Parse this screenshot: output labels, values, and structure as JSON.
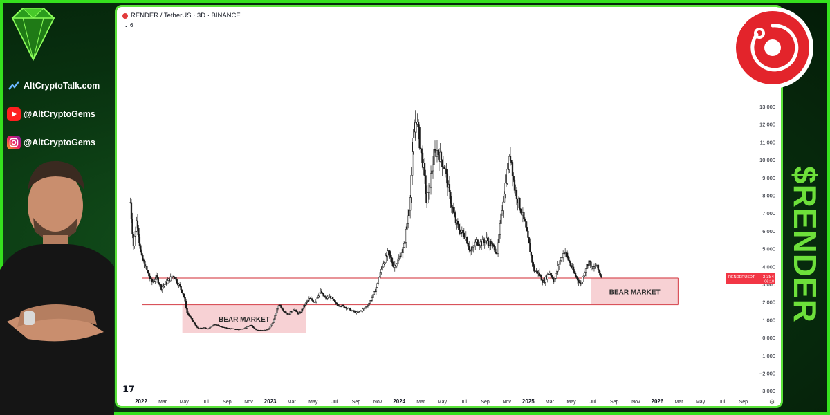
{
  "left_panel": {
    "website": "AltCryptoTalk.com",
    "youtube": "@AltCryptoGems",
    "instagram": "@AltCryptoGems"
  },
  "chart_header": {
    "title": "RENDER / TetherUS · 3D · BINANCE",
    "indicator_count": "6"
  },
  "brand": {
    "ticker_label": "$RENDER",
    "accent_color": "#35e11e",
    "render_red": "#e3242b"
  },
  "price_label": {
    "symbol": "RENDERUSDT",
    "value": "3.384",
    "countdown": "06:10"
  },
  "chart_data": {
    "type": "candlestick",
    "title": "RENDER / TetherUS · 3D · BINANCE",
    "y_range": [
      -3.0,
      13.5
    ],
    "y_ticks": [
      "13.000",
      "12.000",
      "11.000",
      "10.000",
      "9.000",
      "8.000",
      "7.000",
      "6.000",
      "5.000",
      "4.000",
      "3.000",
      "2.000",
      "1.000",
      "0.000",
      "−1.000",
      "−2.000",
      "−3.000"
    ],
    "y_tick_values": [
      13,
      12,
      11,
      10,
      9,
      8,
      7,
      6,
      5,
      4,
      3,
      2,
      1,
      0,
      -1,
      -2,
      -3
    ],
    "x_ticks": [
      "2022",
      "Mar",
      "May",
      "Jul",
      "Sep",
      "Nov",
      "2023",
      "Mar",
      "May",
      "Jul",
      "Sep",
      "Nov",
      "2024",
      "Mar",
      "May",
      "Jul",
      "Sep",
      "Nov",
      "2025",
      "Mar",
      "May",
      "Jul",
      "Sep",
      "Nov",
      "2026",
      "Mar",
      "May",
      "Jul",
      "Sep"
    ],
    "x_tick_bold": [
      "2022",
      "2023",
      "2024",
      "2025",
      "2026"
    ],
    "price_path": [
      [
        "2021-12-01",
        7.6
      ],
      [
        "2021-12-10",
        5.2
      ],
      [
        "2021-12-20",
        6.7
      ],
      [
        "2022-01-01",
        4.6
      ],
      [
        "2022-01-15",
        3.9
      ],
      [
        "2022-02-01",
        3.1
      ],
      [
        "2022-02-15",
        3.4
      ],
      [
        "2022-03-01",
        2.8
      ],
      [
        "2022-03-20",
        3.2
      ],
      [
        "2022-04-05",
        3.5
      ],
      [
        "2022-04-20",
        3.0
      ],
      [
        "2022-05-05",
        2.4
      ],
      [
        "2022-05-15",
        1.4
      ],
      [
        "2022-06-01",
        0.9
      ],
      [
        "2022-06-15",
        0.5
      ],
      [
        "2022-07-01",
        0.55
      ],
      [
        "2022-07-15",
        0.5
      ],
      [
        "2022-08-01",
        0.75
      ],
      [
        "2022-08-15",
        0.65
      ],
      [
        "2022-09-01",
        0.55
      ],
      [
        "2022-09-20",
        0.5
      ],
      [
        "2022-10-10",
        0.45
      ],
      [
        "2022-11-01",
        0.55
      ],
      [
        "2022-11-15",
        0.7
      ],
      [
        "2022-12-01",
        0.45
      ],
      [
        "2022-12-20",
        0.4
      ],
      [
        "2023-01-05",
        0.45
      ],
      [
        "2023-01-20",
        0.9
      ],
      [
        "2023-02-05",
        1.9
      ],
      [
        "2023-02-20",
        1.5
      ],
      [
        "2023-03-05",
        1.3
      ],
      [
        "2023-03-20",
        1.6
      ],
      [
        "2023-04-05",
        1.3
      ],
      [
        "2023-04-20",
        1.8
      ],
      [
        "2023-05-05",
        2.2
      ],
      [
        "2023-05-20",
        2.0
      ],
      [
        "2023-06-05",
        2.6
      ],
      [
        "2023-06-20",
        2.2
      ],
      [
        "2023-07-05",
        2.3
      ],
      [
        "2023-07-20",
        1.9
      ],
      [
        "2023-08-05",
        1.8
      ],
      [
        "2023-08-20",
        1.7
      ],
      [
        "2023-09-05",
        1.5
      ],
      [
        "2023-09-20",
        1.4
      ],
      [
        "2023-10-05",
        1.55
      ],
      [
        "2023-10-20",
        1.8
      ],
      [
        "2023-11-05",
        2.3
      ],
      [
        "2023-11-20",
        3.1
      ],
      [
        "2023-12-05",
        4.2
      ],
      [
        "2023-12-20",
        4.8
      ],
      [
        "2024-01-05",
        4.0
      ],
      [
        "2024-01-20",
        4.4
      ],
      [
        "2024-02-05",
        5.2
      ],
      [
        "2024-02-20",
        7.5
      ],
      [
        "2024-03-01",
        10.8
      ],
      [
        "2024-03-10",
        12.5
      ],
      [
        "2024-03-20",
        11.0
      ],
      [
        "2024-04-01",
        9.5
      ],
      [
        "2024-04-10",
        7.6
      ],
      [
        "2024-04-20",
        8.8
      ],
      [
        "2024-05-01",
        10.3
      ],
      [
        "2024-05-10",
        10.5
      ],
      [
        "2024-05-20",
        10.1
      ],
      [
        "2024-06-01",
        9.6
      ],
      [
        "2024-06-15",
        8.0
      ],
      [
        "2024-07-01",
        6.6
      ],
      [
        "2024-07-15",
        6.0
      ],
      [
        "2024-08-01",
        5.7
      ],
      [
        "2024-08-15",
        4.8
      ],
      [
        "2024-09-01",
        5.4
      ],
      [
        "2024-09-15",
        5.3
      ],
      [
        "2024-10-01",
        5.5
      ],
      [
        "2024-10-15",
        5.2
      ],
      [
        "2024-11-01",
        4.8
      ],
      [
        "2024-11-10",
        6.4
      ],
      [
        "2024-11-20",
        8.2
      ],
      [
        "2024-12-01",
        9.4
      ],
      [
        "2024-12-10",
        10.3
      ],
      [
        "2024-12-20",
        8.5
      ],
      [
        "2025-01-05",
        7.4
      ],
      [
        "2025-01-20",
        6.4
      ],
      [
        "2025-02-01",
        5.2
      ],
      [
        "2025-02-15",
        3.8
      ],
      [
        "2025-03-01",
        3.6
      ],
      [
        "2025-03-15",
        3.1
      ],
      [
        "2025-04-01",
        3.7
      ],
      [
        "2025-04-15",
        3.2
      ],
      [
        "2025-05-01",
        4.3
      ],
      [
        "2025-05-15",
        4.9
      ],
      [
        "2025-06-01",
        4.1
      ],
      [
        "2025-06-15",
        3.5
      ],
      [
        "2025-07-01",
        3.0
      ],
      [
        "2025-07-15",
        3.9
      ],
      [
        "2025-07-25",
        4.3
      ],
      [
        "2025-08-05",
        3.8
      ],
      [
        "2025-08-15",
        4.1
      ],
      [
        "2025-08-25",
        3.6
      ],
      [
        "2025-09-01",
        3.38
      ]
    ],
    "zones": [
      {
        "label": "BEAR MARKET",
        "x_start": "2022-05-01",
        "x_end": "2023-04-25",
        "y_low": 0.25,
        "y_high": 1.85
      },
      {
        "label": "BEAR MARKET",
        "x_start": "2025-08-01",
        "x_end": "2026-04-10",
        "y_low": 1.85,
        "y_high": 3.35
      }
    ],
    "support_band": {
      "x_start": "2022-01-05",
      "x_end": "2026-04-10",
      "y_top": 3.35,
      "y_bottom": 1.85
    },
    "x_range": [
      "2021-11-20",
      "2026-10-15"
    ],
    "grid": false
  }
}
